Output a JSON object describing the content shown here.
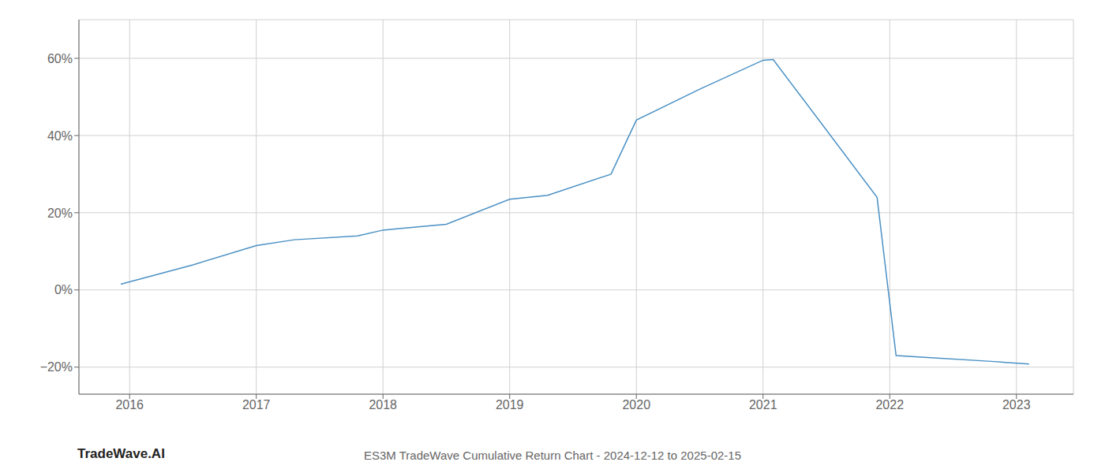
{
  "chart_data": {
    "type": "line",
    "title": "ES3M TradeWave Cumulative Return Chart - 2024-12-12 to 2025-02-15",
    "annotations": [
      "TradeWave.AI"
    ],
    "x": [
      2015.93,
      2016.5,
      2017.0,
      2017.3,
      2017.8,
      2018.0,
      2018.5,
      2019.0,
      2019.3,
      2019.8,
      2020.0,
      2020.5,
      2021.0,
      2021.08,
      2021.9,
      2022.05,
      2022.3,
      2022.8,
      2023.1
    ],
    "values": [
      1.5,
      6.5,
      11.5,
      13.0,
      14.0,
      15.5,
      17.0,
      23.5,
      24.5,
      30.0,
      44.0,
      52.0,
      59.5,
      59.7,
      24.0,
      -17.0,
      -17.5,
      -18.5,
      -19.2
    ],
    "color": "#4a90c4",
    "xlim": [
      2015.6,
      2023.45
    ],
    "ylim": [
      -27,
      70
    ],
    "xticks": [
      2016,
      2017,
      2018,
      2019,
      2020,
      2021,
      2022,
      2023
    ],
    "yticks": [
      {
        "value": -20,
        "label": "−20%"
      },
      {
        "value": 0,
        "label": "0%"
      },
      {
        "value": 20,
        "label": "20%"
      },
      {
        "value": 40,
        "label": "40%"
      },
      {
        "value": 60,
        "label": "60%"
      }
    ],
    "grid": true
  }
}
